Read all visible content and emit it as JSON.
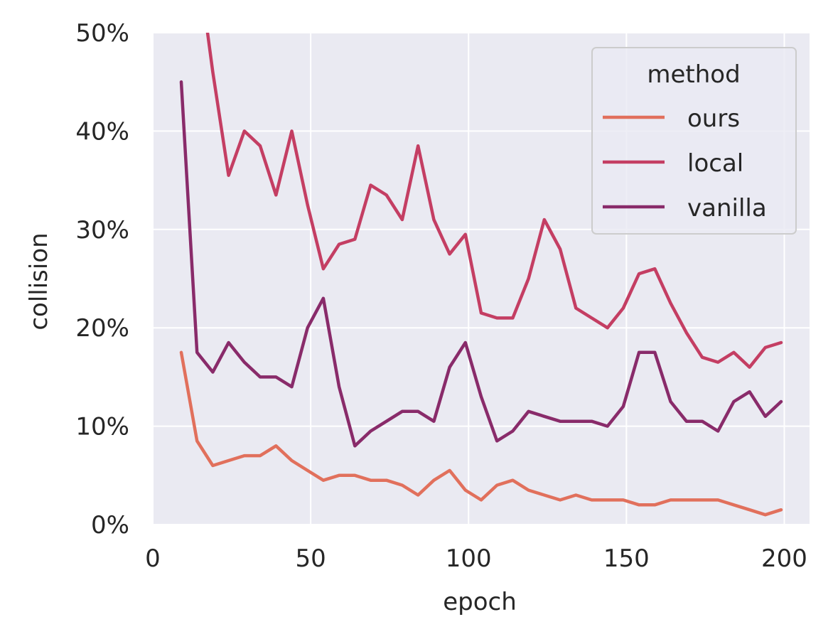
{
  "chart_data": {
    "type": "line",
    "xlabel": "epoch",
    "ylabel": "collision",
    "xlim": [
      0,
      208
    ],
    "ylim": [
      0,
      50
    ],
    "xticks": [
      0,
      50,
      100,
      150,
      200
    ],
    "yticks": [
      0,
      10,
      20,
      30,
      40,
      50
    ],
    "ytick_labels": [
      "0%",
      "10%",
      "20%",
      "30%",
      "40%",
      "50%"
    ],
    "grid": true,
    "legend": {
      "title": "method",
      "position": "top-right"
    },
    "x": [
      9,
      14,
      19,
      24,
      29,
      34,
      39,
      44,
      49,
      54,
      59,
      64,
      69,
      74,
      79,
      84,
      89,
      94,
      99,
      104,
      109,
      114,
      119,
      124,
      129,
      134,
      139,
      144,
      149,
      154,
      159,
      164,
      169,
      174,
      179,
      184,
      189,
      194,
      199
    ],
    "series": [
      {
        "name": "ours",
        "color": "#e1705c",
        "values": [
          17.5,
          8.5,
          6.0,
          6.5,
          7.0,
          7.0,
          8.0,
          6.5,
          5.5,
          4.5,
          5.0,
          5.0,
          4.5,
          4.5,
          4.0,
          3.0,
          4.5,
          5.5,
          3.5,
          2.5,
          4.0,
          4.5,
          3.5,
          3.0,
          2.5,
          3.0,
          2.5,
          2.5,
          2.5,
          2.0,
          2.0,
          2.5,
          2.5,
          2.5,
          2.5,
          2.0,
          1.5,
          1.0,
          1.5
        ]
      },
      {
        "name": "local",
        "color": "#c43e63",
        "values": [
          null,
          58.0,
          46.0,
          35.5,
          40.0,
          38.5,
          33.5,
          40.0,
          32.5,
          26.0,
          28.5,
          29.0,
          34.5,
          33.5,
          31.0,
          38.5,
          31.0,
          27.5,
          29.5,
          21.5,
          21.0,
          21.0,
          25.0,
          31.0,
          28.0,
          22.0,
          21.0,
          20.0,
          22.0,
          25.5,
          26.0,
          22.5,
          19.5,
          17.0,
          16.5,
          17.5,
          16.0,
          18.0,
          18.5
        ]
      },
      {
        "name": "vanilla",
        "color": "#892b6a",
        "values": [
          45.0,
          17.5,
          15.5,
          18.5,
          16.5,
          15.0,
          15.0,
          14.0,
          20.0,
          23.0,
          14.0,
          8.0,
          9.5,
          10.5,
          11.5,
          11.5,
          10.5,
          16.0,
          18.5,
          13.0,
          8.5,
          9.5,
          11.5,
          11.0,
          10.5,
          10.5,
          10.5,
          10.0,
          12.0,
          17.5,
          17.5,
          12.5,
          10.5,
          10.5,
          9.5,
          12.5,
          13.5,
          11.0,
          12.5
        ]
      }
    ]
  }
}
